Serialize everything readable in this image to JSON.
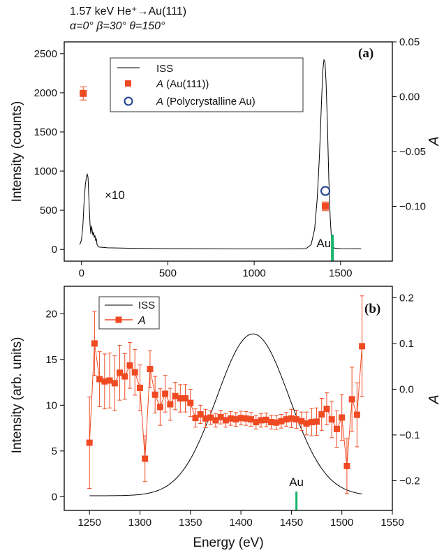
{
  "header": {
    "line1": "1.57 keV He⁺→Au(111)",
    "line2": "α=0°   β=30°   θ=150°"
  },
  "colors": {
    "iss": "#000000",
    "a_au111": "#f04a23",
    "a_poly": "#1f3f8f",
    "au_marker": "#17b36b",
    "axes": "#000000"
  },
  "chart_data": [
    {
      "panel_label": "(a)",
      "type": "line",
      "xlim": [
        -100,
        1800
      ],
      "ylim_left": [
        -150,
        2650
      ],
      "ylim_right": [
        -0.15,
        0.05
      ],
      "x_ticks": [
        0,
        500,
        1000,
        1500
      ],
      "y_ticks_left": [
        0,
        500,
        1000,
        1500,
        2000,
        2500
      ],
      "y_ticks_right": [
        -0.1,
        -0.05,
        0.0,
        0.05
      ],
      "y_tick_labels_right": [
        "−0.10",
        "−0.05",
        "0.00",
        "0.05"
      ],
      "ylabel_left": "Intensity (counts)",
      "ylabel_right": "A",
      "annotation_x10": "×10",
      "legend": {
        "position": "top-center",
        "iss": "ISS",
        "a_au111_symbol": "A",
        "a_au111": " (Au(111))",
        "a_poly_symbol": "A",
        "a_poly": " (Polycrystalline Au)"
      },
      "au_marker": {
        "label": "Au",
        "x": 1453
      },
      "series": [
        {
          "name": "ISS",
          "axis": "left",
          "points": [
            [
              -10,
              60
            ],
            [
              0,
              120
            ],
            [
              8,
              300
            ],
            [
              15,
              600
            ],
            [
              22,
              820
            ],
            [
              28,
              920
            ],
            [
              33,
              960
            ],
            [
              38,
              920
            ],
            [
              42,
              700
            ],
            [
              46,
              480
            ],
            [
              50,
              300
            ],
            [
              54,
              200
            ],
            [
              58,
              300
            ],
            [
              62,
              240
            ],
            [
              66,
              180
            ],
            [
              70,
              220
            ],
            [
              74,
              150
            ],
            [
              78,
              180
            ],
            [
              82,
              110
            ],
            [
              86,
              140
            ],
            [
              90,
              60
            ],
            [
              95,
              45
            ],
            [
              100,
              30
            ],
            [
              150,
              20
            ],
            [
              300,
              14
            ],
            [
              500,
              10
            ],
            [
              700,
              8
            ],
            [
              900,
              6
            ],
            [
              1100,
              6
            ],
            [
              1250,
              7
            ],
            [
              1300,
              10
            ],
            [
              1330,
              60
            ],
            [
              1350,
              260
            ],
            [
              1365,
              650
            ],
            [
              1378,
              1200
            ],
            [
              1390,
              1900
            ],
            [
              1398,
              2300
            ],
            [
              1404,
              2420
            ],
            [
              1410,
              2400
            ],
            [
              1416,
              2150
            ],
            [
              1424,
              1600
            ],
            [
              1432,
              900
            ],
            [
              1440,
              420
            ],
            [
              1448,
              120
            ],
            [
              1455,
              40
            ],
            [
              1465,
              16
            ],
            [
              1500,
              10
            ],
            [
              1600,
              8
            ],
            [
              1620,
              6
            ]
          ]
        },
        {
          "name": "A (Au(111))",
          "axis": "right",
          "points": [
            [
              10,
              0.003,
              0.006
            ],
            [
              1412,
              -0.1,
              0.004
            ]
          ]
        },
        {
          "name": "A (Polycrystalline Au)",
          "axis": "right",
          "points": [
            [
              1412,
              -0.086
            ]
          ]
        }
      ]
    },
    {
      "panel_label": "(b)",
      "type": "line",
      "xlim": [
        1225,
        1550
      ],
      "ylim_left": [
        -1.5,
        23
      ],
      "ylim_right": [
        -0.265,
        0.225
      ],
      "x_ticks": [
        1250,
        1300,
        1350,
        1400,
        1450,
        1500,
        1550
      ],
      "y_ticks_left": [
        0,
        5,
        10,
        15,
        20
      ],
      "y_ticks_right": [
        -0.2,
        -0.1,
        0.0,
        0.1,
        0.2
      ],
      "y_tick_labels_right": [
        "−0.2",
        "−0.1",
        "0.0",
        "0.1",
        "0.2"
      ],
      "xlabel": "Energy (eV)",
      "ylabel_left": "Intensity (arb. units)",
      "ylabel_right": "A",
      "legend": {
        "position": "top-left",
        "iss": "ISS",
        "a": "A"
      },
      "au_marker": {
        "label": "Au",
        "x": 1455
      },
      "series": [
        {
          "name": "ISS",
          "axis": "left",
          "gaussian": {
            "center": 1412,
            "amplitude": 17.7,
            "sigma": 36,
            "baseline": 0.1,
            "x_from": 1250,
            "x_to": 1520
          }
        },
        {
          "name": "A",
          "axis": "right",
          "points": [
            [
              1250,
              -0.117,
              0.1
            ],
            [
              1255,
              0.1,
              0.07
            ],
            [
              1260,
              0.022,
              0.06
            ],
            [
              1265,
              0.017,
              0.06
            ],
            [
              1270,
              0.019,
              0.06
            ],
            [
              1275,
              0.013,
              0.06
            ],
            [
              1280,
              0.036,
              0.06
            ],
            [
              1285,
              0.028,
              0.05
            ],
            [
              1290,
              0.052,
              0.05
            ],
            [
              1295,
              0.037,
              0.05
            ],
            [
              1300,
              0.003,
              0.05
            ],
            [
              1305,
              -0.152,
              0.05
            ],
            [
              1310,
              0.044,
              0.04
            ],
            [
              1315,
              -0.012,
              0.04
            ],
            [
              1320,
              -0.039,
              0.04
            ],
            [
              1325,
              -0.01,
              0.04
            ],
            [
              1330,
              -0.033,
              0.035
            ],
            [
              1335,
              -0.015,
              0.03
            ],
            [
              1340,
              -0.02,
              0.03
            ],
            [
              1345,
              -0.02,
              0.03
            ],
            [
              1350,
              -0.03,
              0.03
            ],
            [
              1355,
              -0.063,
              0.02
            ],
            [
              1360,
              -0.055,
              0.02
            ],
            [
              1365,
              -0.064,
              0.02
            ],
            [
              1370,
              -0.062,
              0.015
            ],
            [
              1375,
              -0.068,
              0.015
            ],
            [
              1380,
              -0.061,
              0.015
            ],
            [
              1385,
              -0.068,
              0.015
            ],
            [
              1390,
              -0.064,
              0.015
            ],
            [
              1395,
              -0.066,
              0.015
            ],
            [
              1400,
              -0.063,
              0.015
            ],
            [
              1405,
              -0.064,
              0.015
            ],
            [
              1410,
              -0.066,
              0.015
            ],
            [
              1415,
              -0.072,
              0.015
            ],
            [
              1420,
              -0.068,
              0.015
            ],
            [
              1425,
              -0.067,
              0.015
            ],
            [
              1430,
              -0.072,
              0.015
            ],
            [
              1435,
              -0.073,
              0.015
            ],
            [
              1440,
              -0.07,
              0.015
            ],
            [
              1445,
              -0.066,
              0.015
            ],
            [
              1450,
              -0.064,
              0.02
            ],
            [
              1455,
              -0.066,
              0.02
            ],
            [
              1460,
              -0.07,
              0.02
            ],
            [
              1465,
              -0.075,
              0.025
            ],
            [
              1470,
              -0.072,
              0.03
            ],
            [
              1475,
              -0.071,
              0.03
            ],
            [
              1480,
              -0.055,
              0.035
            ],
            [
              1485,
              -0.043,
              0.035
            ],
            [
              1490,
              -0.066,
              0.04
            ],
            [
              1495,
              -0.087,
              0.04
            ],
            [
              1500,
              -0.062,
              0.05
            ],
            [
              1505,
              -0.168,
              0.06
            ],
            [
              1510,
              -0.022,
              0.07
            ],
            [
              1515,
              -0.056,
              0.07
            ],
            [
              1520,
              0.094,
              0.11
            ]
          ]
        }
      ]
    }
  ]
}
